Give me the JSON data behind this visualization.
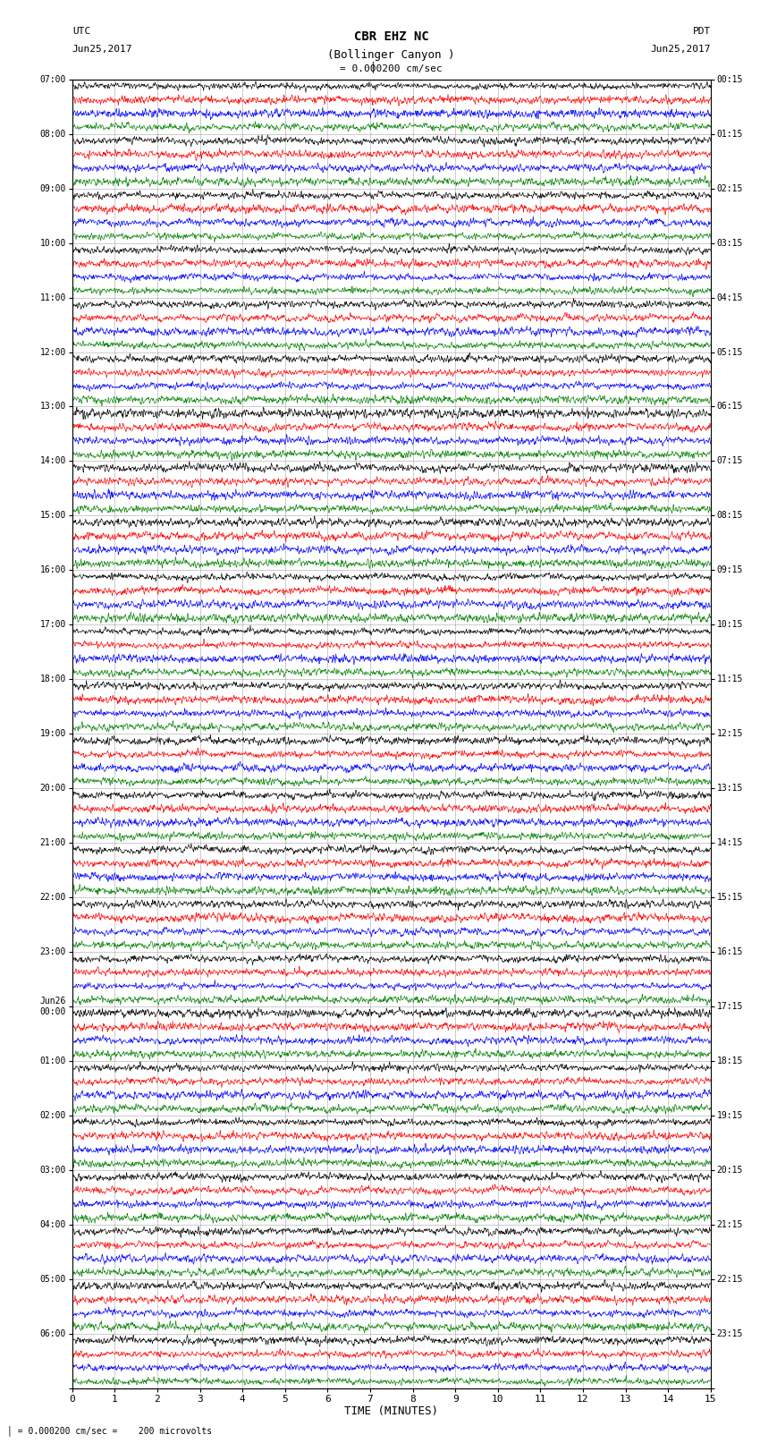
{
  "title_line1": "CBR EHZ NC",
  "title_line2": "(Bollinger Canyon )",
  "scale_text": "= 0.000200 cm/sec",
  "bottom_label": "= 0.000200 cm/sec =    200 microvolts",
  "utc_label1": "UTC",
  "utc_label2": "Jun25,2017",
  "pdt_label1": "PDT",
  "pdt_label2": "Jun25,2017",
  "xlabel": "TIME (MINUTES)",
  "left_times": [
    "07:00",
    "08:00",
    "09:00",
    "10:00",
    "11:00",
    "12:00",
    "13:00",
    "14:00",
    "15:00",
    "16:00",
    "17:00",
    "18:00",
    "19:00",
    "20:00",
    "21:00",
    "22:00",
    "23:00",
    "Jun26\n00:00",
    "01:00",
    "02:00",
    "03:00",
    "04:00",
    "05:00",
    "06:00"
  ],
  "right_times": [
    "00:15",
    "01:15",
    "02:15",
    "03:15",
    "04:15",
    "05:15",
    "06:15",
    "07:15",
    "08:15",
    "09:15",
    "10:15",
    "11:15",
    "12:15",
    "13:15",
    "14:15",
    "15:15",
    "16:15",
    "17:15",
    "18:15",
    "19:15",
    "20:15",
    "21:15",
    "22:15",
    "23:15"
  ],
  "colors": [
    "black",
    "red",
    "blue",
    "green"
  ],
  "n_groups": 24,
  "n_cols": 4,
  "time_min": 0,
  "time_max": 15,
  "background_color": "white",
  "grid_color": "#888888",
  "seed": 42
}
